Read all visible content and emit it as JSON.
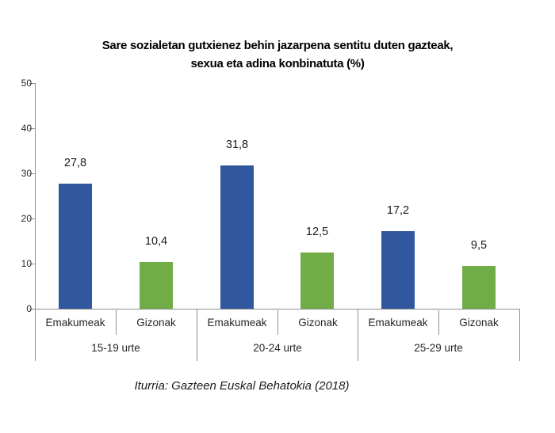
{
  "title": {
    "line1": "Sare sozialetan gutxienez behin jazarpena sentitu duten gazteak,",
    "line2": "sexua eta adina konbinatuta (%)"
  },
  "source": "Iturria: Gazteen Euskal Behatokia (2018)",
  "chart_data": {
    "type": "bar",
    "title": "Sare sozialetan gutxienez behin jazarpena sentitu duten gazteak, sexua eta adina konbinatuta (%)",
    "categories": [
      "15-19 urte",
      "20-24 urte",
      "25-29 urte"
    ],
    "series": [
      {
        "name": "Emakumeak",
        "color": "#31589E",
        "values": [
          27.8,
          31.8,
          17.2
        ],
        "labels": [
          "27,8",
          "31,8",
          "17,2"
        ]
      },
      {
        "name": "Gizonak",
        "color": "#70AD47",
        "values": [
          10.4,
          12.5,
          9.5
        ],
        "labels": [
          "10,4",
          "12,5",
          "9,5"
        ]
      }
    ],
    "ylim": [
      0,
      50
    ],
    "yticks": [
      0,
      10,
      20,
      30,
      40,
      50
    ],
    "grid": false,
    "legend": "none",
    "value_label_decimal_separator": ",",
    "source": "Iturria: Gazteen Euskal Behatokia (2018)"
  }
}
